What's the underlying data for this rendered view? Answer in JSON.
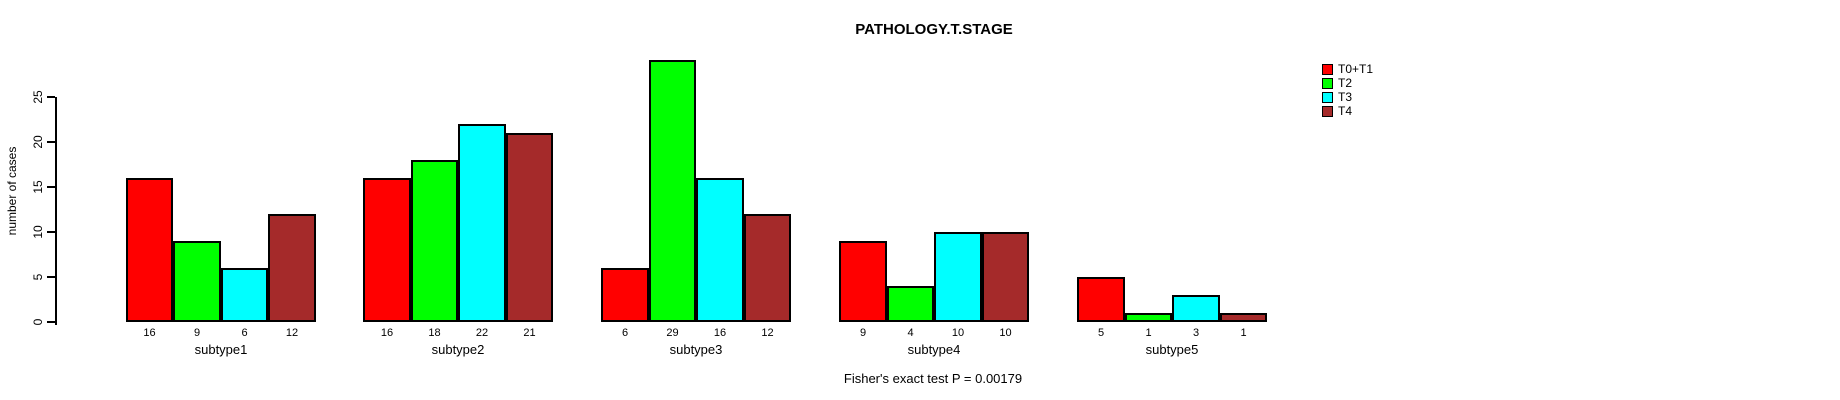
{
  "title": "PATHOLOGY.T.STAGE",
  "ylabel": "number of cases",
  "footer": "Fisher's exact test P = 0.00179",
  "legend": {
    "position": "top-right",
    "entries": [
      "T0+T1",
      "T2",
      "T3",
      "T4"
    ]
  },
  "colors": {
    "T0+T1": "#FF0000",
    "T2": "#00FF00",
    "T3": "#00FFFF",
    "T4": "#A52A2A",
    "axis": "#000000",
    "background": "#FFFFFF"
  },
  "chart_data": {
    "type": "bar",
    "grouped": true,
    "title": "PATHOLOGY.T.STAGE",
    "xlabel": "",
    "ylabel": "number of cases",
    "categories": [
      "subtype1",
      "subtype2",
      "subtype3",
      "subtype4",
      "subtype5"
    ],
    "series": [
      {
        "name": "T0+T1",
        "color": "#FF0000",
        "values": [
          16,
          16,
          6,
          9,
          5
        ]
      },
      {
        "name": "T2",
        "color": "#00FF00",
        "values": [
          9,
          18,
          29,
          4,
          1
        ]
      },
      {
        "name": "T3",
        "color": "#00FFFF",
        "values": [
          6,
          22,
          16,
          10,
          3
        ]
      },
      {
        "name": "T4",
        "color": "#A52A2A",
        "values": [
          12,
          21,
          12,
          10,
          1
        ]
      }
    ],
    "yticks": [
      0,
      5,
      10,
      15,
      20,
      25
    ],
    "ylim": [
      0,
      29
    ],
    "grid": false,
    "bar_value_labels_shown": true,
    "legend_position": "top-right",
    "annotation": "Fisher's exact test P = 0.00179"
  }
}
